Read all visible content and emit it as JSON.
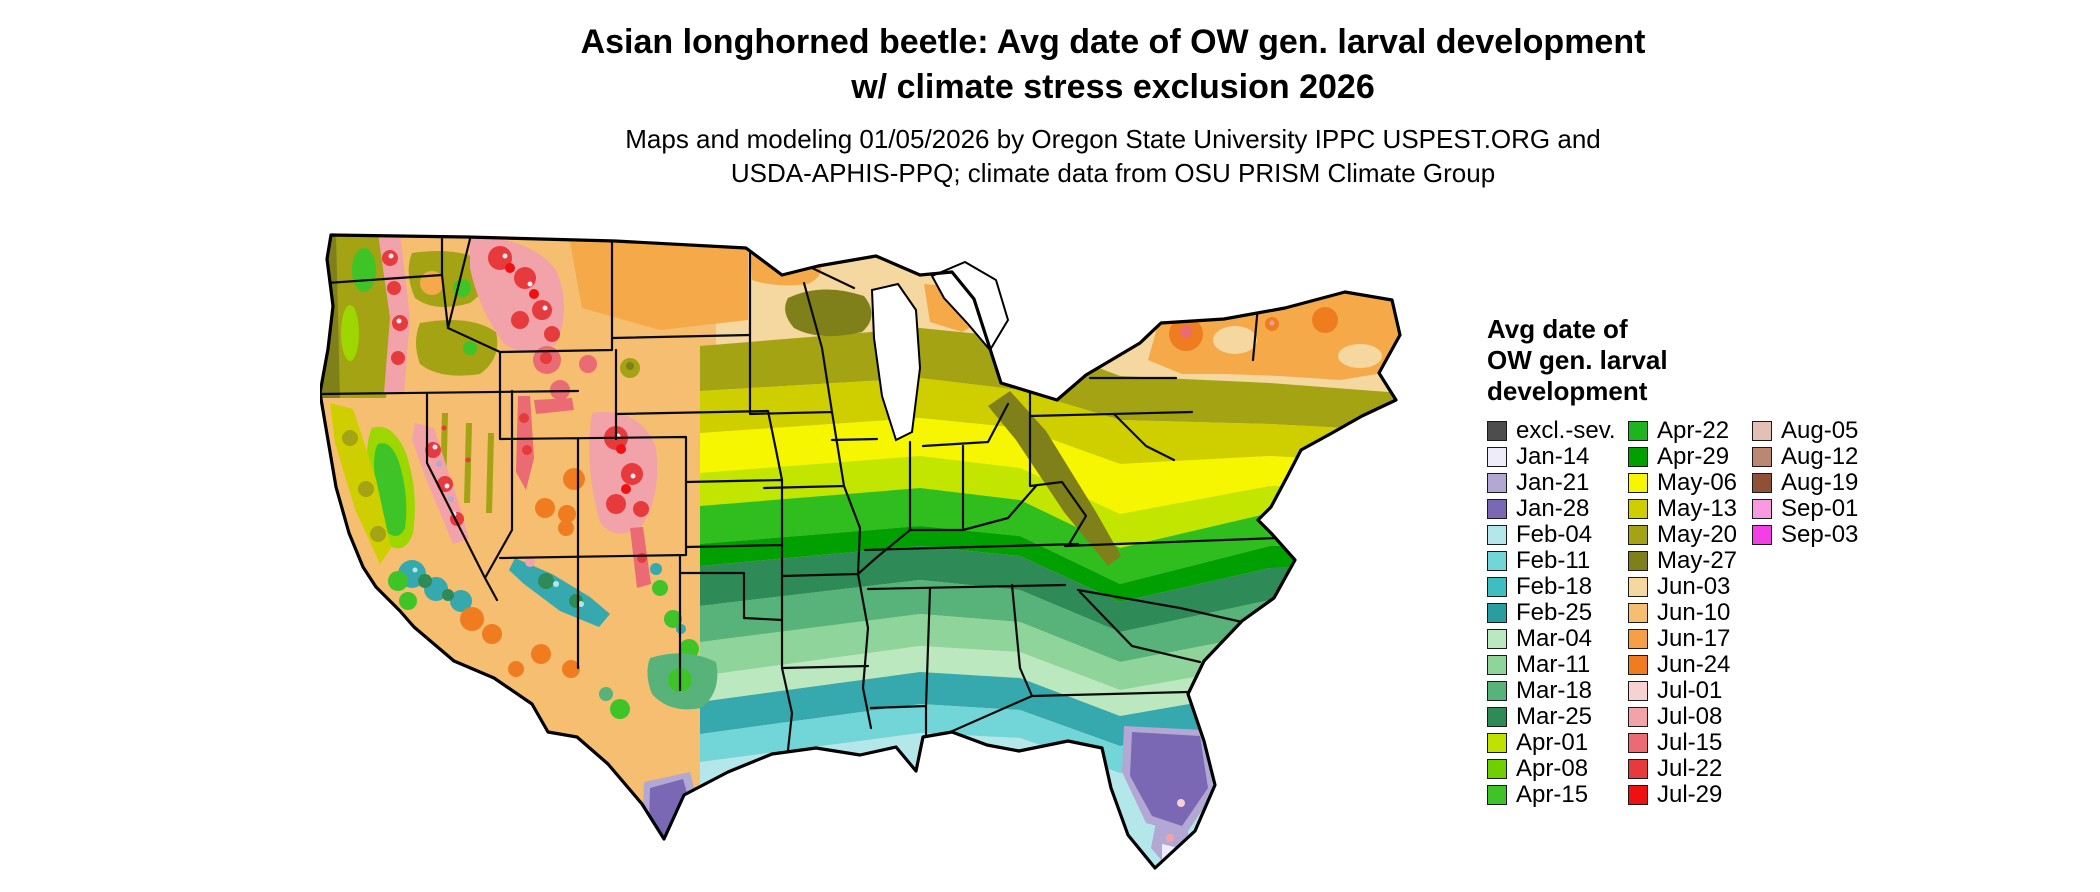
{
  "header": {
    "title_line1": "Asian longhorned beetle: Avg date of OW gen. larval development",
    "title_line2": "w/ climate stress exclusion 2026",
    "subtitle_line1": "Maps and modeling 01/05/2026 by Oregon State University IPPC USPEST.ORG and",
    "subtitle_line2": "USDA-APHIS-PPQ; climate data from OSU PRISM Climate Group"
  },
  "legend": {
    "title_lines": [
      "Avg date of",
      "OW gen. larval",
      "development"
    ],
    "columns": [
      [
        {
          "label": "excl.-sev.",
          "color": "#4d4d4d"
        },
        {
          "label": "Jan-14",
          "color": "#efecf9"
        },
        {
          "label": "Jan-21",
          "color": "#b3a8d4"
        },
        {
          "label": "Jan-28",
          "color": "#7b68b5"
        },
        {
          "label": "Feb-04",
          "color": "#b4e7ea"
        },
        {
          "label": "Feb-11",
          "color": "#72d5d8"
        },
        {
          "label": "Feb-18",
          "color": "#3fbec2"
        },
        {
          "label": "Feb-25",
          "color": "#2a9da1"
        },
        {
          "label": "Mar-04",
          "color": "#bce8c0"
        },
        {
          "label": "Mar-11",
          "color": "#8fd49b"
        },
        {
          "label": "Mar-18",
          "color": "#57b379"
        },
        {
          "label": "Mar-25",
          "color": "#2e8b57"
        },
        {
          "label": "Apr-01",
          "color": "#bfe200"
        },
        {
          "label": "Apr-08",
          "color": "#6fcf00"
        },
        {
          "label": "Apr-15",
          "color": "#3fc428"
        }
      ],
      [
        {
          "label": "Apr-22",
          "color": "#1eb41e"
        },
        {
          "label": "Apr-29",
          "color": "#00a000"
        },
        {
          "label": "May-06",
          "color": "#f6f600"
        },
        {
          "label": "May-13",
          "color": "#cfcf00"
        },
        {
          "label": "May-20",
          "color": "#a3a314"
        },
        {
          "label": "May-27",
          "color": "#80801a"
        },
        {
          "label": "Jun-03",
          "color": "#f5d7a0"
        },
        {
          "label": "Jun-10",
          "color": "#f5be70"
        },
        {
          "label": "Jun-17",
          "color": "#f5a044"
        },
        {
          "label": "Jun-24",
          "color": "#ef7d1f"
        },
        {
          "label": "Jul-01",
          "color": "#f6d2d2"
        },
        {
          "label": "Jul-08",
          "color": "#f2a3aa"
        },
        {
          "label": "Jul-15",
          "color": "#ea6b74"
        },
        {
          "label": "Jul-22",
          "color": "#e63a3c"
        },
        {
          "label": "Jul-29",
          "color": "#ee1111"
        }
      ],
      [
        {
          "label": "Aug-05",
          "color": "#e3c0b6"
        },
        {
          "label": "Aug-12",
          "color": "#bb8672"
        },
        {
          "label": "Aug-19",
          "color": "#8e5138"
        },
        {
          "label": "Sep-01",
          "color": "#f79ae0"
        },
        {
          "label": "Sep-03",
          "color": "#f23fe6"
        }
      ]
    ]
  }
}
